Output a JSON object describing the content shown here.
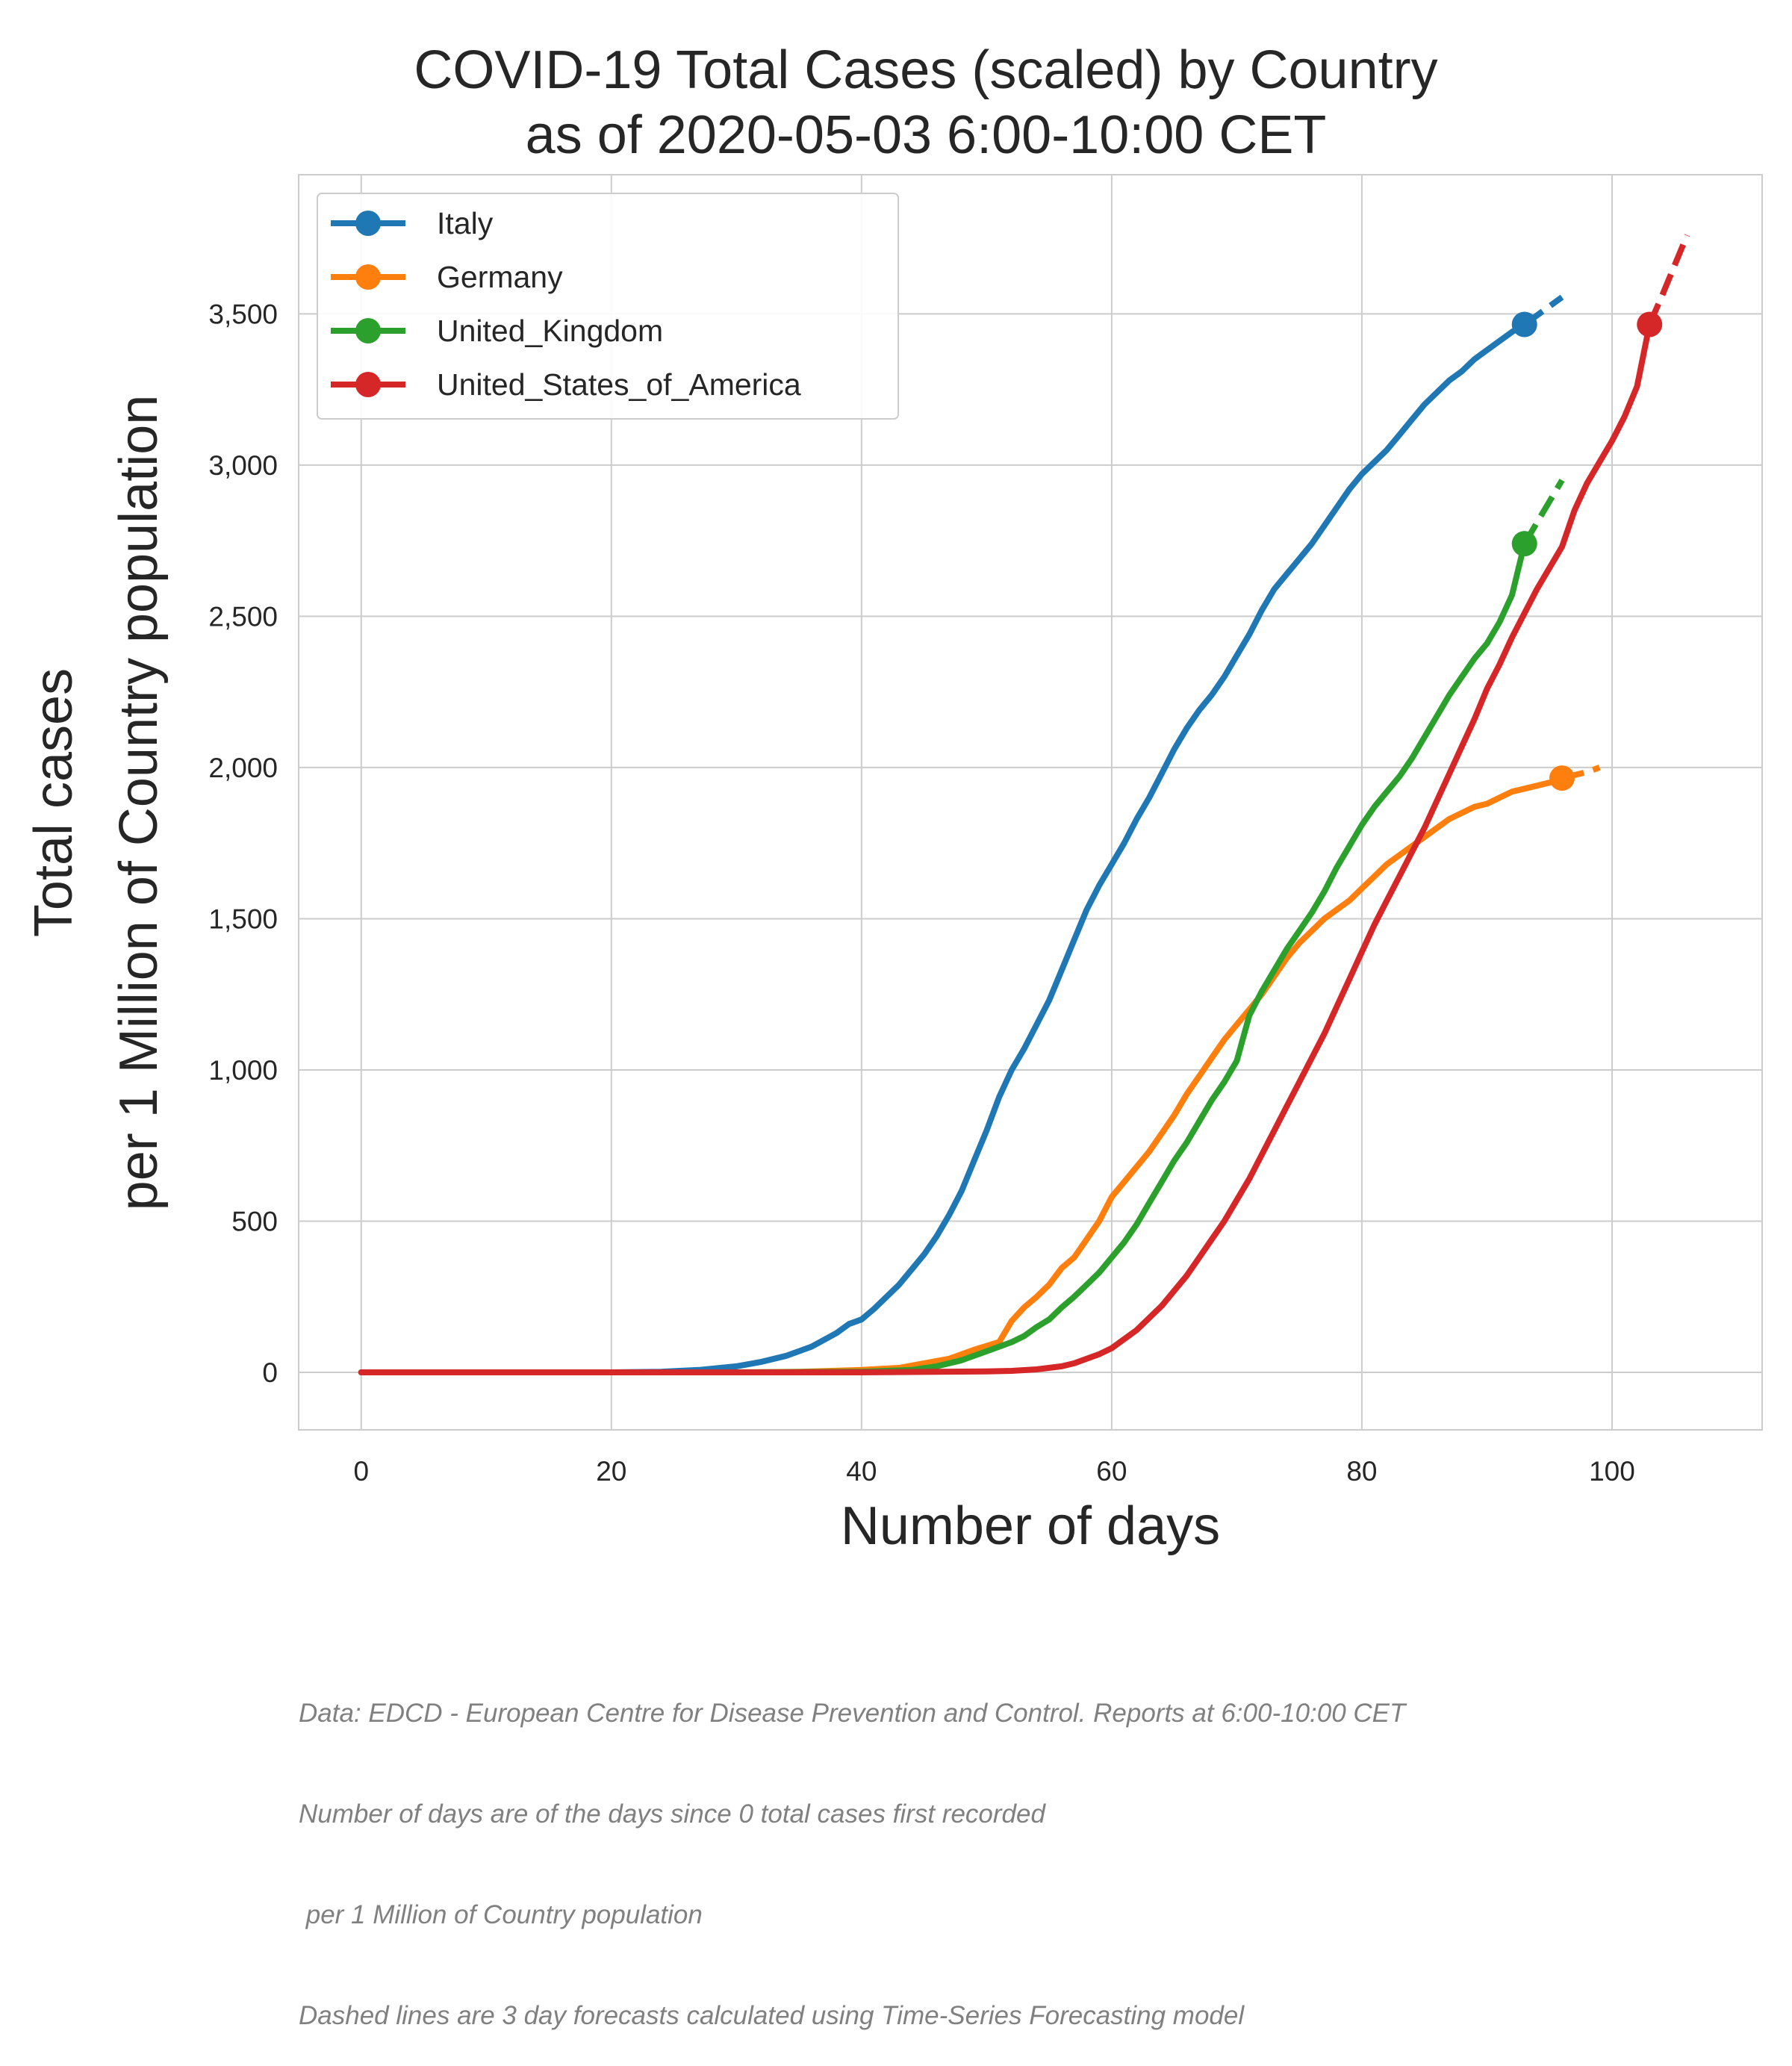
{
  "chart_data": {
    "type": "line",
    "title_lines": [
      "COVID-19  Total Cases (scaled) by Country",
      "as of 2020-05-03 6:00-10:00 CET"
    ],
    "xlabel": "Number of days",
    "ylabel_lines": [
      "Total cases",
      "per 1 Million of Country population"
    ],
    "xlim": [
      -5,
      112
    ],
    "ylim": [
      -190,
      3960
    ],
    "x_ticks": [
      0,
      20,
      40,
      60,
      80,
      100
    ],
    "x_tick_labels": [
      "0",
      "20",
      "40",
      "60",
      "80",
      "100"
    ],
    "y_ticks": [
      0,
      500,
      1000,
      1500,
      2000,
      2500,
      3000,
      3500
    ],
    "y_tick_labels": [
      "0",
      "500",
      "1,000",
      "1,500",
      "2,000",
      "2,500",
      "3,000",
      "3,500"
    ],
    "grid": true,
    "legend_position": "top-left",
    "series": [
      {
        "name": "Italy",
        "color": "#1f77b4",
        "points": [
          [
            0,
            0
          ],
          [
            10,
            0
          ],
          [
            20,
            0
          ],
          [
            24,
            2
          ],
          [
            27,
            8
          ],
          [
            30,
            20
          ],
          [
            32,
            35
          ],
          [
            34,
            55
          ],
          [
            36,
            85
          ],
          [
            38,
            130
          ],
          [
            39,
            160
          ],
          [
            40,
            175
          ],
          [
            41,
            210
          ],
          [
            43,
            290
          ],
          [
            44,
            340
          ],
          [
            45,
            390
          ],
          [
            46,
            450
          ],
          [
            47,
            520
          ],
          [
            48,
            600
          ],
          [
            49,
            700
          ],
          [
            50,
            800
          ],
          [
            51,
            910
          ],
          [
            52,
            1000
          ],
          [
            53,
            1070
          ],
          [
            54,
            1150
          ],
          [
            55,
            1230
          ],
          [
            56,
            1330
          ],
          [
            57,
            1430
          ],
          [
            58,
            1530
          ],
          [
            59,
            1610
          ],
          [
            60,
            1680
          ],
          [
            61,
            1750
          ],
          [
            62,
            1830
          ],
          [
            63,
            1900
          ],
          [
            64,
            1980
          ],
          [
            65,
            2060
          ],
          [
            66,
            2130
          ],
          [
            67,
            2190
          ],
          [
            68,
            2240
          ],
          [
            69,
            2300
          ],
          [
            70,
            2370
          ],
          [
            71,
            2440
          ],
          [
            72,
            2520
          ],
          [
            73,
            2590
          ],
          [
            74,
            2640
          ],
          [
            75,
            2690
          ],
          [
            76,
            2740
          ],
          [
            77,
            2800
          ],
          [
            78,
            2860
          ],
          [
            79,
            2920
          ],
          [
            80,
            2970
          ],
          [
            81,
            3010
          ],
          [
            82,
            3050
          ],
          [
            83,
            3100
          ],
          [
            84,
            3150
          ],
          [
            85,
            3200
          ],
          [
            86,
            3240
          ],
          [
            87,
            3280
          ],
          [
            88,
            3310
          ],
          [
            89,
            3350
          ],
          [
            90,
            3380
          ],
          [
            91,
            3410
          ],
          [
            92,
            3440
          ],
          [
            93,
            3465
          ]
        ],
        "forecast": [
          [
            93,
            3465
          ],
          [
            94,
            3495
          ],
          [
            95,
            3525
          ],
          [
            96,
            3555
          ]
        ],
        "marker": [
          93,
          3465
        ]
      },
      {
        "name": "Germany",
        "color": "#ff7f0e",
        "points": [
          [
            0,
            0
          ],
          [
            20,
            0
          ],
          [
            30,
            0
          ],
          [
            35,
            2
          ],
          [
            40,
            8
          ],
          [
            43,
            15
          ],
          [
            45,
            30
          ],
          [
            47,
            45
          ],
          [
            49,
            75
          ],
          [
            51,
            100
          ],
          [
            52,
            170
          ],
          [
            53,
            215
          ],
          [
            54,
            250
          ],
          [
            55,
            290
          ],
          [
            56,
            345
          ],
          [
            57,
            380
          ],
          [
            58,
            440
          ],
          [
            59,
            500
          ],
          [
            60,
            580
          ],
          [
            61,
            630
          ],
          [
            62,
            680
          ],
          [
            63,
            730
          ],
          [
            64,
            790
          ],
          [
            65,
            850
          ],
          [
            66,
            920
          ],
          [
            67,
            980
          ],
          [
            68,
            1040
          ],
          [
            69,
            1100
          ],
          [
            70,
            1150
          ],
          [
            71,
            1200
          ],
          [
            72,
            1250
          ],
          [
            73,
            1310
          ],
          [
            74,
            1370
          ],
          [
            75,
            1420
          ],
          [
            76,
            1460
          ],
          [
            77,
            1500
          ],
          [
            78,
            1530
          ],
          [
            79,
            1560
          ],
          [
            80,
            1600
          ],
          [
            81,
            1640
          ],
          [
            82,
            1680
          ],
          [
            83,
            1710
          ],
          [
            84,
            1740
          ],
          [
            85,
            1770
          ],
          [
            86,
            1800
          ],
          [
            87,
            1830
          ],
          [
            88,
            1850
          ],
          [
            89,
            1870
          ],
          [
            90,
            1880
          ],
          [
            91,
            1900
          ],
          [
            92,
            1920
          ],
          [
            93,
            1930
          ],
          [
            94,
            1940
          ],
          [
            95,
            1950
          ],
          [
            96,
            1965
          ]
        ],
        "forecast": [
          [
            96,
            1965
          ],
          [
            97,
            1975
          ],
          [
            98,
            1985
          ],
          [
            99,
            2000
          ]
        ],
        "marker": [
          96,
          1965
        ]
      },
      {
        "name": "United_Kingdom",
        "color": "#2ca02c",
        "points": [
          [
            0,
            0
          ],
          [
            20,
            0
          ],
          [
            30,
            0
          ],
          [
            40,
            2
          ],
          [
            44,
            8
          ],
          [
            46,
            20
          ],
          [
            48,
            40
          ],
          [
            50,
            70
          ],
          [
            52,
            100
          ],
          [
            53,
            120
          ],
          [
            54,
            150
          ],
          [
            55,
            175
          ],
          [
            56,
            215
          ],
          [
            57,
            250
          ],
          [
            58,
            290
          ],
          [
            59,
            330
          ],
          [
            60,
            380
          ],
          [
            61,
            430
          ],
          [
            62,
            490
          ],
          [
            63,
            560
          ],
          [
            64,
            630
          ],
          [
            65,
            700
          ],
          [
            66,
            760
          ],
          [
            67,
            830
          ],
          [
            68,
            900
          ],
          [
            69,
            960
          ],
          [
            70,
            1030
          ],
          [
            71,
            1180
          ],
          [
            72,
            1260
          ],
          [
            73,
            1330
          ],
          [
            74,
            1400
          ],
          [
            75,
            1460
          ],
          [
            76,
            1520
          ],
          [
            77,
            1590
          ],
          [
            78,
            1670
          ],
          [
            79,
            1740
          ],
          [
            80,
            1810
          ],
          [
            81,
            1870
          ],
          [
            82,
            1920
          ],
          [
            83,
            1970
          ],
          [
            84,
            2030
          ],
          [
            85,
            2100
          ],
          [
            86,
            2170
          ],
          [
            87,
            2240
          ],
          [
            88,
            2300
          ],
          [
            89,
            2360
          ],
          [
            90,
            2410
          ],
          [
            91,
            2480
          ],
          [
            92,
            2570
          ],
          [
            93,
            2740
          ]
        ],
        "forecast": [
          [
            93,
            2740
          ],
          [
            94,
            2810
          ],
          [
            95,
            2880
          ],
          [
            96,
            2950
          ]
        ],
        "marker": [
          93,
          2740
        ]
      },
      {
        "name": "United_States_of_America",
        "color": "#d62728",
        "points": [
          [
            0,
            0
          ],
          [
            20,
            0
          ],
          [
            40,
            0
          ],
          [
            50,
            3
          ],
          [
            52,
            5
          ],
          [
            54,
            10
          ],
          [
            56,
            20
          ],
          [
            57,
            30
          ],
          [
            58,
            45
          ],
          [
            59,
            60
          ],
          [
            60,
            80
          ],
          [
            61,
            110
          ],
          [
            62,
            140
          ],
          [
            63,
            180
          ],
          [
            64,
            220
          ],
          [
            65,
            270
          ],
          [
            66,
            320
          ],
          [
            67,
            380
          ],
          [
            68,
            440
          ],
          [
            69,
            500
          ],
          [
            70,
            570
          ],
          [
            71,
            640
          ],
          [
            72,
            720
          ],
          [
            73,
            800
          ],
          [
            74,
            880
          ],
          [
            75,
            960
          ],
          [
            76,
            1040
          ],
          [
            77,
            1120
          ],
          [
            78,
            1210
          ],
          [
            79,
            1300
          ],
          [
            80,
            1390
          ],
          [
            81,
            1480
          ],
          [
            82,
            1560
          ],
          [
            83,
            1640
          ],
          [
            84,
            1720
          ],
          [
            85,
            1800
          ],
          [
            86,
            1890
          ],
          [
            87,
            1980
          ],
          [
            88,
            2070
          ],
          [
            89,
            2160
          ],
          [
            90,
            2260
          ],
          [
            91,
            2340
          ],
          [
            92,
            2430
          ],
          [
            93,
            2510
          ],
          [
            94,
            2590
          ],
          [
            95,
            2660
          ],
          [
            96,
            2730
          ],
          [
            97,
            2850
          ],
          [
            98,
            2940
          ],
          [
            99,
            3010
          ],
          [
            100,
            3080
          ],
          [
            101,
            3160
          ],
          [
            102,
            3260
          ],
          [
            103,
            3465
          ]
        ],
        "forecast": [
          [
            103,
            3465
          ],
          [
            104,
            3560
          ],
          [
            105,
            3660
          ],
          [
            106,
            3760
          ]
        ],
        "marker": [
          103,
          3465
        ]
      }
    ]
  },
  "footnote": [
    "Data: EDCD - European Centre for Disease Prevention and Control. Reports at 6:00-10:00 CET",
    "Number of days are of the days since 0 total cases first recorded",
    " per 1 Million of Country population",
    "Dashed lines are 3 day forecasts calculated using Time-Series Forecasting model"
  ]
}
